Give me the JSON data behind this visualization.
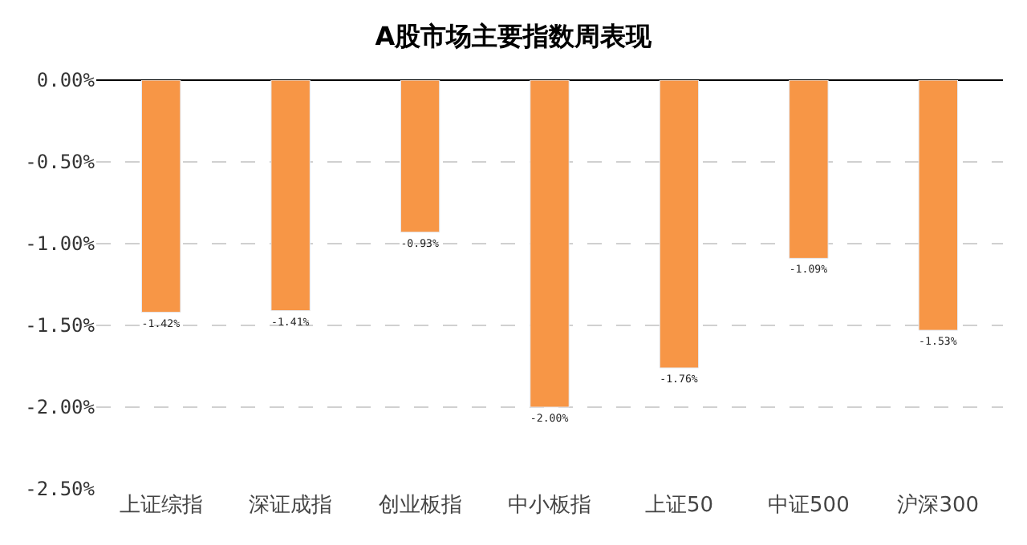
{
  "chart_data": {
    "type": "bar",
    "title": "A股市场主要指数周表现",
    "categories": [
      "上证综指",
      "深证成指",
      "创业板指",
      "中小板指",
      "上证50",
      "中证500",
      "沪深300"
    ],
    "values": [
      -1.42,
      -1.41,
      -0.93,
      -2.0,
      -1.76,
      -1.09,
      -1.53
    ],
    "value_labels": [
      "-1.42%",
      "-1.41%",
      "-0.93%",
      "-2.00%",
      "-1.76%",
      "-1.09%",
      "-1.53%"
    ],
    "color": "#f79646",
    "ylim": [
      -2.5,
      0
    ],
    "yticks": [
      {
        "value": 0,
        "label": "0.00%"
      },
      {
        "value": -0.5,
        "label": "-0.50%"
      },
      {
        "value": -1,
        "label": "-1.00%"
      },
      {
        "value": -1.5,
        "label": "-1.50%"
      },
      {
        "value": -2,
        "label": "-2.00%"
      },
      {
        "value": -2.5,
        "label": "-2.50%"
      }
    ],
    "grid": "y",
    "legend": false
  }
}
